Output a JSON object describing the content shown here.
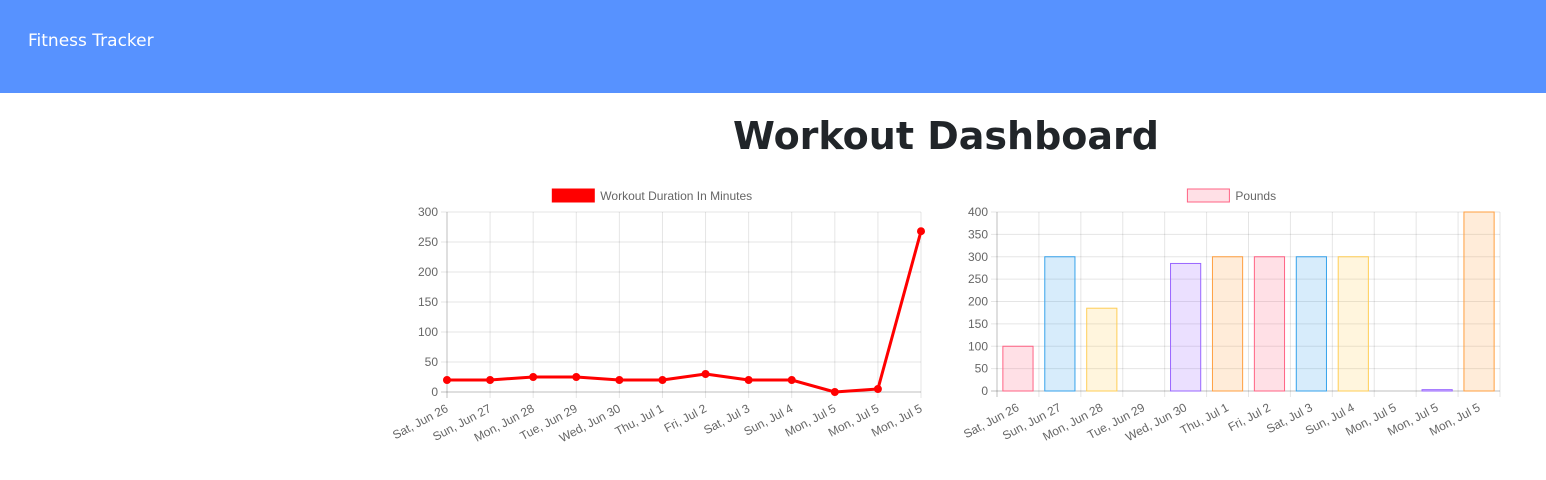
{
  "navbar": {
    "brand": "Fitness Tracker",
    "background_color": "#5792ff"
  },
  "page_title": "Workout Dashboard",
  "chart_data": [
    {
      "type": "line",
      "title": "",
      "xlabel": "",
      "ylabel": "",
      "categories": [
        "Sat, Jun 26",
        "Sun, Jun 27",
        "Mon, Jun 28",
        "Tue, Jun 29",
        "Wed, Jun 30",
        "Thu, Jul 1",
        "Fri, Jul 2",
        "Sat, Jul 3",
        "Sun, Jul 4",
        "Mon, Jul 5",
        "Mon, Jul 5",
        "Mon, Jul 5"
      ],
      "series": [
        {
          "name": "Workout Duration In Minutes",
          "values": [
            20,
            20,
            25,
            25,
            20,
            20,
            30,
            20,
            20,
            0,
            5,
            268
          ],
          "color": "#ff0000"
        }
      ],
      "ylim": [
        0,
        300
      ],
      "yticks": [
        0,
        50,
        100,
        150,
        200,
        250,
        300
      ],
      "grid": true,
      "legend_position": "top"
    },
    {
      "type": "bar",
      "title": "",
      "xlabel": "",
      "ylabel": "",
      "categories": [
        "Sat, Jun 26",
        "Sun, Jun 27",
        "Mon, Jun 28",
        "Tue, Jun 29",
        "Wed, Jun 30",
        "Thu, Jul 1",
        "Fri, Jul 2",
        "Sat, Jul 3",
        "Sun, Jul 4",
        "Mon, Jul 5",
        "Mon, Jul 5",
        "Mon, Jul 5"
      ],
      "series": [
        {
          "name": "Pounds",
          "values": [
            100,
            300,
            185,
            0,
            285,
            300,
            300,
            300,
            300,
            0,
            3,
            400
          ]
        }
      ],
      "bar_fill_colors": [
        "rgba(255,99,132,0.2)",
        "rgba(54,162,235,0.2)",
        "rgba(255,206,86,0.2)",
        "rgba(75,192,192,0.2)",
        "rgba(153,102,255,0.2)",
        "rgba(255,159,64,0.2)"
      ],
      "bar_border_colors": [
        "rgba(255,99,132,1)",
        "rgba(54,162,235,1)",
        "rgba(255,206,86,1)",
        "rgba(75,192,192,1)",
        "rgba(153,102,255,1)",
        "rgba(255,159,64,1)"
      ],
      "ylim": [
        0,
        400
      ],
      "yticks": [
        0,
        50,
        100,
        150,
        200,
        250,
        300,
        350,
        400
      ],
      "grid": true,
      "legend_position": "top"
    }
  ]
}
